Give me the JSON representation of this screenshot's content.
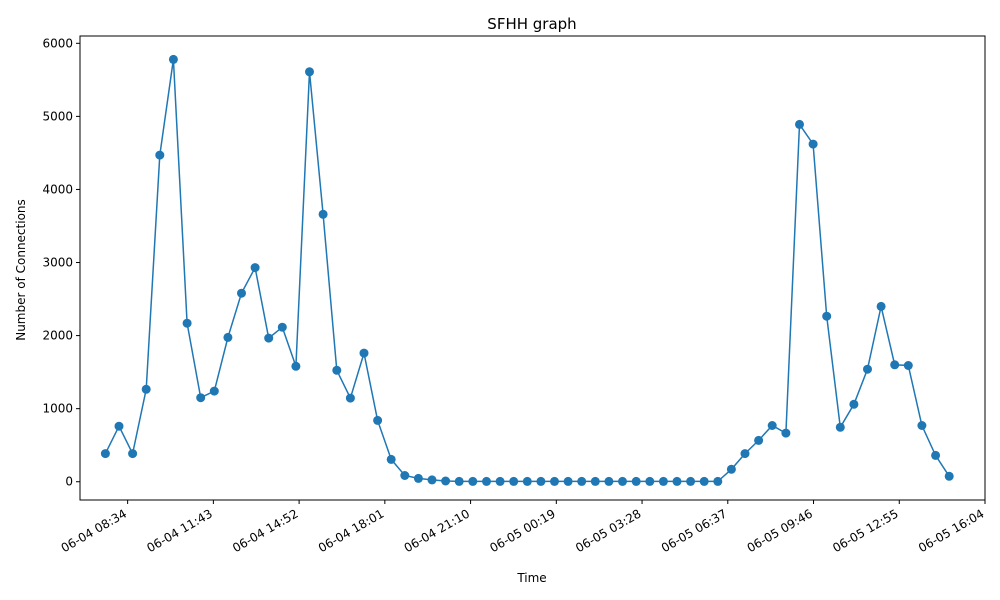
{
  "chart_data": {
    "type": "line",
    "title": "SFHH graph",
    "xlabel": "Time",
    "ylabel": "Number of Connections",
    "ylim": [
      -250,
      6100
    ],
    "yticks": [
      0,
      1000,
      2000,
      3000,
      4000,
      5000,
      6000
    ],
    "xlim": [
      "06-04 06:49",
      "06-05 16:04"
    ],
    "xticks": [
      "06-04 08:34",
      "06-04 11:43",
      "06-04 14:52",
      "06-04 18:01",
      "06-04 21:10",
      "06-05 00:19",
      "06-05 03:28",
      "06-05 06:37",
      "06-05 09:46",
      "06-05 12:55",
      "06-05 16:04"
    ],
    "x_tick_rotation": 30,
    "grid": false,
    "marker": "circle",
    "color": "#1f77b4",
    "series": [
      {
        "x": [
          "06-04 07:45",
          "06-04 08:15",
          "06-04 08:45",
          "06-04 09:15",
          "06-04 09:45",
          "06-04 10:15",
          "06-04 10:45",
          "06-04 11:15",
          "06-04 11:45",
          "06-04 12:15",
          "06-04 12:45",
          "06-04 13:15",
          "06-04 13:45",
          "06-04 14:15",
          "06-04 14:45",
          "06-04 15:15",
          "06-04 15:45",
          "06-04 16:15",
          "06-04 16:45",
          "06-04 17:15",
          "06-04 17:45",
          "06-04 18:15",
          "06-04 18:45",
          "06-04 19:15",
          "06-04 19:45",
          "06-04 20:15",
          "06-04 20:45",
          "06-04 21:15",
          "06-04 21:45",
          "06-04 22:15",
          "06-04 22:45",
          "06-04 23:15",
          "06-04 23:45",
          "06-05 00:15",
          "06-05 00:45",
          "06-05 01:15",
          "06-05 01:45",
          "06-05 02:15",
          "06-05 02:45",
          "06-05 03:15",
          "06-05 03:45",
          "06-05 04:15",
          "06-05 04:45",
          "06-05 05:15",
          "06-05 05:45",
          "06-05 06:15",
          "06-05 06:45",
          "06-05 07:15",
          "06-05 07:45",
          "06-05 08:15",
          "06-05 08:45",
          "06-05 09:15",
          "06-05 09:45",
          "06-05 10:15",
          "06-05 10:45",
          "06-05 11:15",
          "06-05 11:45",
          "06-05 12:15",
          "06-05 12:45",
          "06-05 13:15",
          "06-05 13:45",
          "06-05 14:15",
          "06-05 14:45"
        ],
        "y": [
          385,
          760,
          385,
          1265,
          4470,
          5780,
          2170,
          1150,
          1240,
          1975,
          2580,
          2930,
          1965,
          2115,
          1580,
          5610,
          3660,
          1525,
          1145,
          1760,
          840,
          305,
          85,
          45,
          25,
          10,
          5,
          5,
          5,
          5,
          5,
          5,
          5,
          5,
          5,
          5,
          5,
          5,
          5,
          5,
          5,
          5,
          5,
          5,
          5,
          5,
          170,
          385,
          565,
          770,
          665,
          4890,
          4620,
          2265,
          745,
          1060,
          1540,
          2400,
          1600,
          1590,
          770,
          360,
          75
        ]
      }
    ]
  }
}
